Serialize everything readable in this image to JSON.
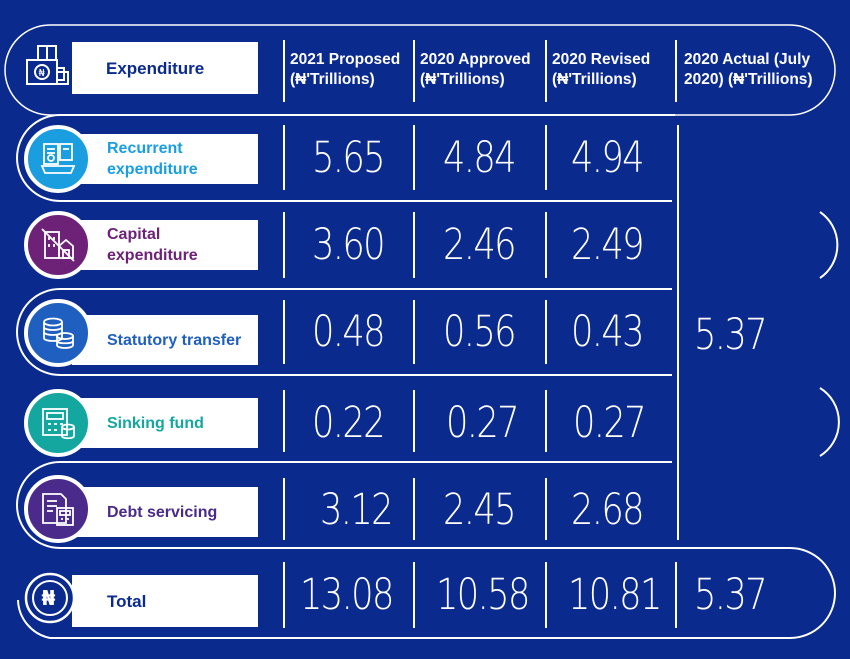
{
  "header": {
    "title": "Expenditure",
    "columns": [
      {
        "line1": "2021 Proposed",
        "line2": "(₦'Trillions)"
      },
      {
        "line1": "2020 Approved",
        "line2": "(₦'Trillions)"
      },
      {
        "line1": "2020 Revised",
        "line2": "(₦'Trillions)"
      },
      {
        "line1": "2020 Actual (July",
        "line2": "2020) (₦'Trillions)"
      }
    ]
  },
  "rows": [
    {
      "label_line1": "Recurrent",
      "label_line2": "expenditure",
      "color": "#1a9ee0",
      "icon": "recurrent-expenditure-icon",
      "values": [
        "5.65",
        "4.84",
        "4.94"
      ]
    },
    {
      "label_line1": "Capital",
      "label_line2": "expenditure",
      "color": "#6d2277",
      "icon": "building-icon",
      "values": [
        "3.60",
        "2.46",
        "2.49"
      ]
    },
    {
      "label_line1": "Statutory transfer",
      "label_line2": "",
      "color": "#1f5fbf",
      "icon": "coins-icon",
      "values": [
        "0.48",
        "0.56",
        "0.43"
      ]
    },
    {
      "label_line1": "Sinking fund",
      "label_line2": "",
      "color": "#14a7a0",
      "icon": "calculator-icon",
      "values": [
        "0.22",
        "0.27",
        "0.27"
      ]
    },
    {
      "label_line1": "Debt servicing",
      "label_line2": "",
      "color": "#4a2a8a",
      "icon": "invoice-calculator-icon",
      "values": [
        "3.12",
        "2.45",
        "2.68"
      ]
    }
  ],
  "actual_combined": "5.37",
  "total": {
    "label": "Total",
    "values": [
      "13.08",
      "10.58",
      "10.81",
      "5.37"
    ]
  },
  "colors": {
    "background": "#0b2a8e",
    "header_text": "#0b2a8e",
    "total_text": "#0b2a8e"
  }
}
